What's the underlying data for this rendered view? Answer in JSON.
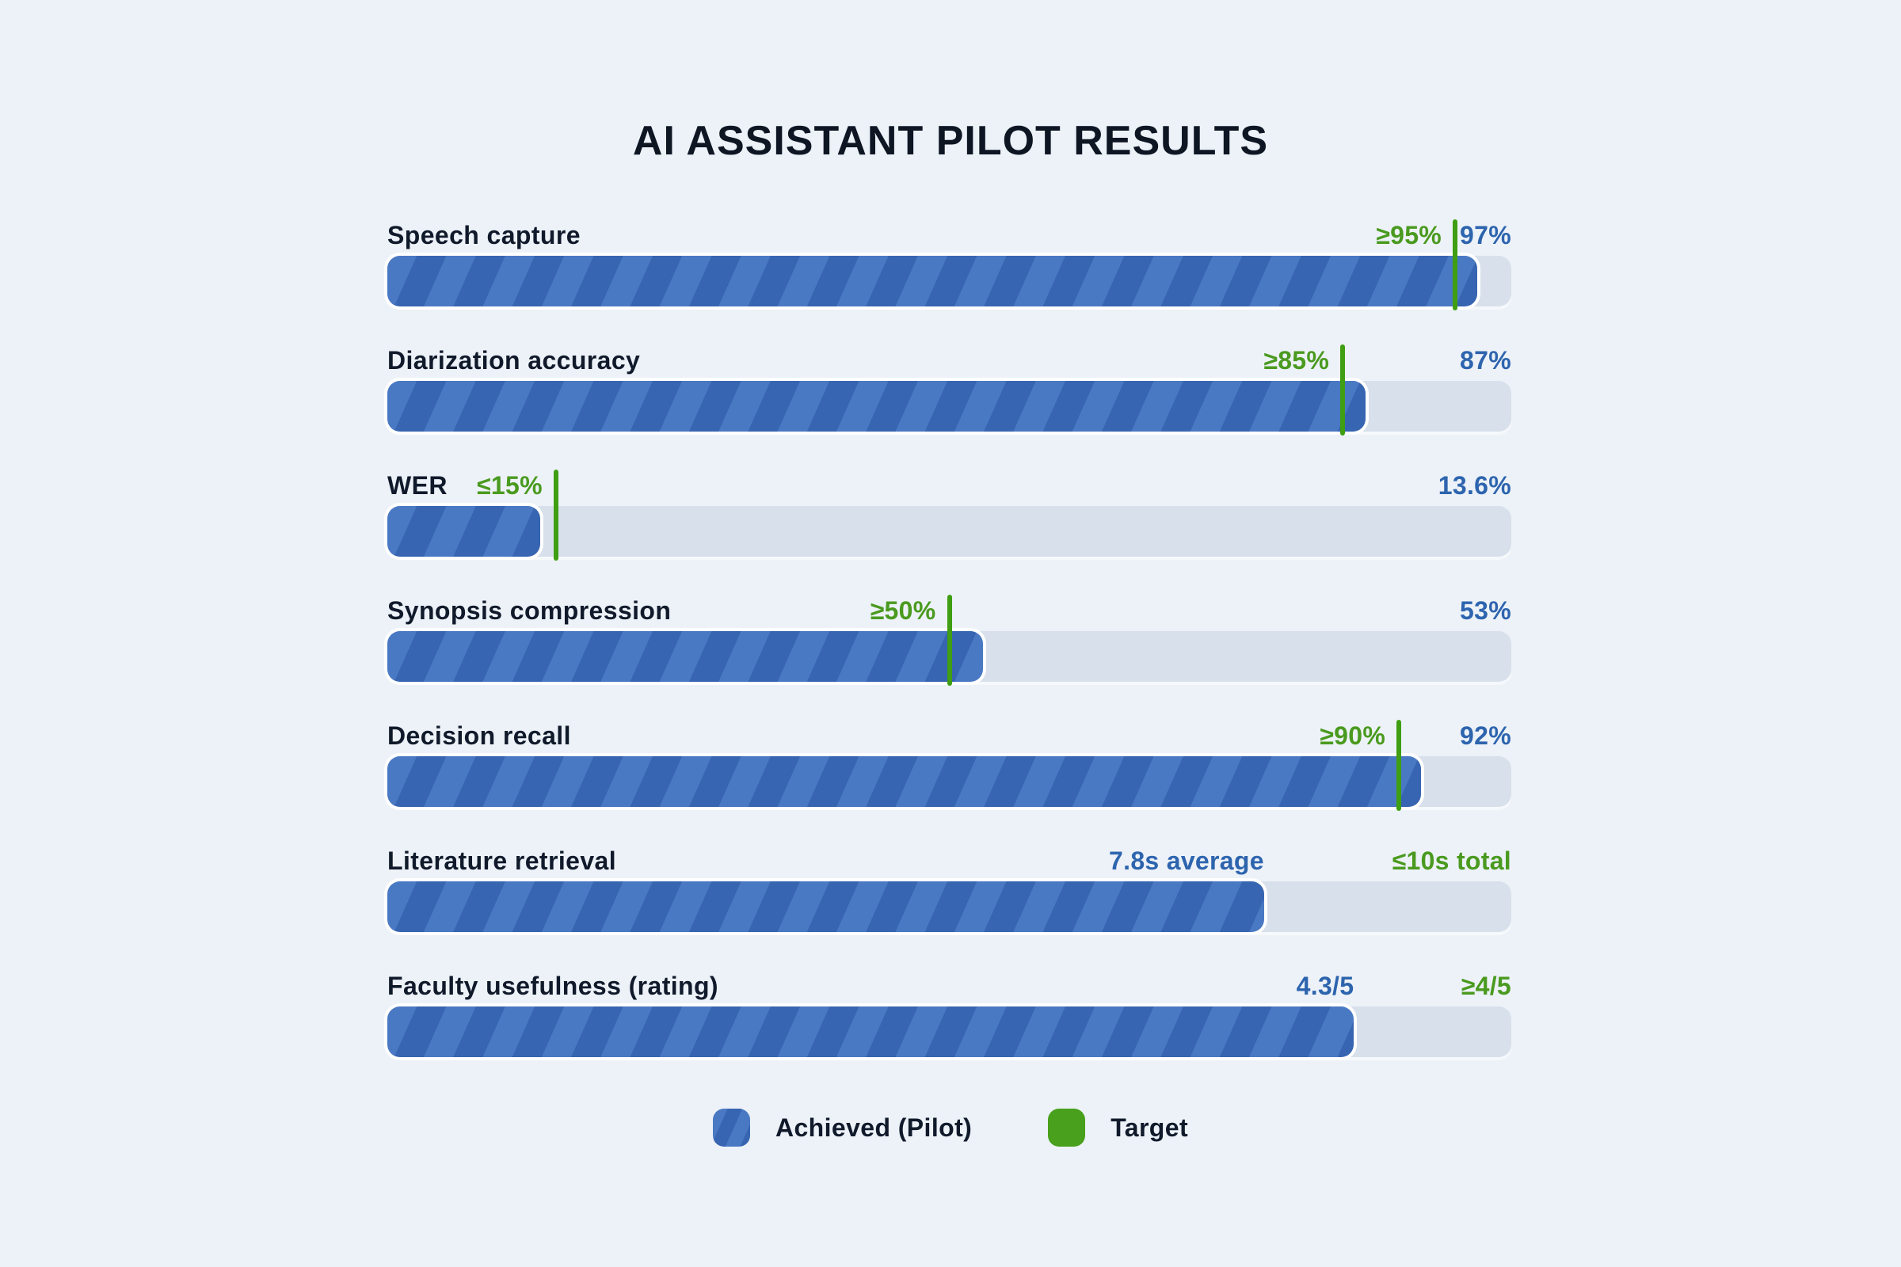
{
  "title": "AI ASSISTANT PILOT RESULTS",
  "chart_data": {
    "type": "bar",
    "orientation": "horizontal",
    "title": "AI ASSISTANT PILOT RESULTS",
    "axis_range_pct": [
      0,
      100
    ],
    "grid": false,
    "rows": [
      {
        "label": "Speech capture",
        "value_text": "97%",
        "target_text": "≥95%",
        "fill_pct": 97,
        "target_pct": 95,
        "value_anchor": "track-end",
        "target_anchor": "marker"
      },
      {
        "label": "Diarization accuracy",
        "value_text": "87%",
        "target_text": "≥85%",
        "fill_pct": 87,
        "target_pct": 85,
        "value_anchor": "track-end",
        "target_anchor": "marker"
      },
      {
        "label": "WER",
        "value_text": "13.6%",
        "target_text": "≤15%",
        "fill_pct": 13.6,
        "target_pct": 15,
        "value_anchor": "track-end",
        "target_anchor": "marker"
      },
      {
        "label": "Synopsis compression",
        "value_text": "53%",
        "target_text": "≥50%",
        "fill_pct": 53,
        "target_pct": 50,
        "value_anchor": "track-end",
        "target_anchor": "marker"
      },
      {
        "label": "Decision recall",
        "value_text": "92%",
        "target_text": "≥90%",
        "fill_pct": 92,
        "target_pct": 90,
        "value_anchor": "track-end",
        "target_anchor": "marker"
      },
      {
        "label": "Literature retrieval",
        "value_text": "7.8s average",
        "target_text": "≤10s total",
        "fill_pct": 78,
        "target_pct": null,
        "value_anchor": "fill-end",
        "target_anchor": "track-end"
      },
      {
        "label": "Faculty usefulness (rating)",
        "value_text": "4.3/5",
        "target_text": "≥4/5",
        "fill_pct": 86,
        "target_pct": null,
        "value_anchor": "fill-end",
        "target_anchor": "track-end"
      }
    ],
    "legend": [
      {
        "label": "Achieved (Pilot)",
        "swatch": "blue-striped"
      },
      {
        "label": "Target",
        "swatch": "green"
      }
    ],
    "colors": {
      "bar_base": "#3765b1",
      "bar_stripe": "#4a79c4",
      "track": "#d8e0eb",
      "target_marker_green": "#3f9e12",
      "target_text_green": "#4a9a1f",
      "value_text_blue": "#2d64ae",
      "label_text": "#101a2b",
      "background": "#edf2f8"
    }
  }
}
